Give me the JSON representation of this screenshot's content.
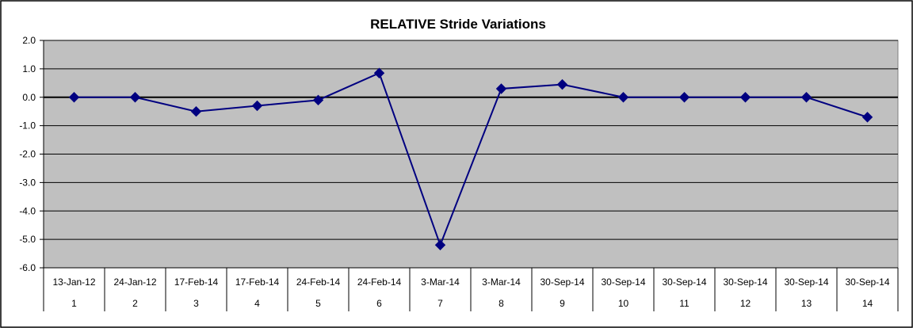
{
  "chart_data": {
    "type": "line",
    "title": "RELATIVE Stride Variations",
    "xlabel": "",
    "ylabel": "",
    "categories": [
      {
        "date": "13-Jan-12",
        "index": "1"
      },
      {
        "date": "24-Jan-12",
        "index": "2"
      },
      {
        "date": "17-Feb-14",
        "index": "3"
      },
      {
        "date": "17-Feb-14",
        "index": "4"
      },
      {
        "date": "24-Feb-14",
        "index": "5"
      },
      {
        "date": "24-Feb-14",
        "index": "6"
      },
      {
        "date": "3-Mar-14",
        "index": "7"
      },
      {
        "date": "3-Mar-14",
        "index": "8"
      },
      {
        "date": "30-Sep-14",
        "index": "9"
      },
      {
        "date": "30-Sep-14",
        "index": "10"
      },
      {
        "date": "30-Sep-14",
        "index": "11"
      },
      {
        "date": "30-Sep-14",
        "index": "12"
      },
      {
        "date": "30-Sep-14",
        "index": "13"
      },
      {
        "date": "30-Sep-14",
        "index": "14"
      }
    ],
    "series": [
      {
        "name": "",
        "values": [
          0.0,
          0.0,
          -0.5,
          -0.3,
          -0.1,
          0.85,
          -5.2,
          0.3,
          0.45,
          0.0,
          0.0,
          0.0,
          0.0,
          -0.7
        ],
        "color": "#000080"
      }
    ],
    "ylim": [
      -6.0,
      2.0
    ],
    "yticks": [
      "2.0",
      "1.0",
      "0.0",
      "-1.0",
      "-2.0",
      "-3.0",
      "-4.0",
      "-5.0",
      "-6.0"
    ],
    "ytick_values": [
      2,
      1,
      0,
      -1,
      -2,
      -3,
      -4,
      -5,
      -6
    ],
    "grid": true,
    "legend": "none",
    "plot_background": "#c0c0c0"
  }
}
